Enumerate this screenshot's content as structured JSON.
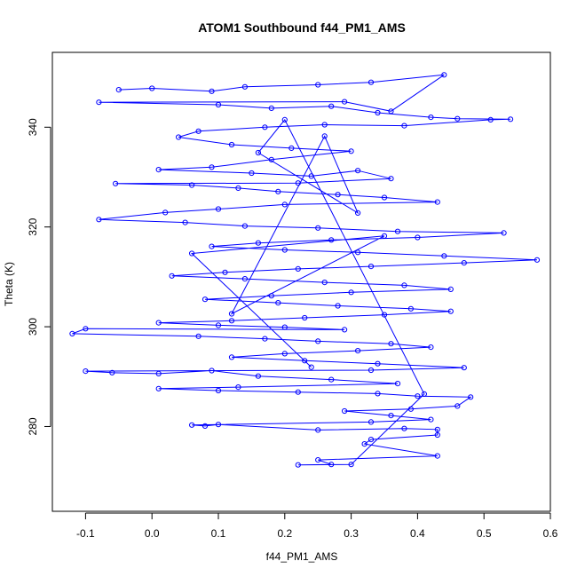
{
  "chart_data": {
    "type": "scatter",
    "title": "ATOM1 Southbound f44_PM1_AMS",
    "xlabel": "f44_PM1_AMS",
    "ylabel": "Theta (K)",
    "xlim": [
      -0.15,
      0.6
    ],
    "ylim": [
      263,
      355
    ],
    "xticks": [
      -0.1,
      0.0,
      0.1,
      0.2,
      0.3,
      0.4,
      0.5,
      0.6
    ],
    "xtick_labels": [
      "-0.1",
      "0.0",
      "0.1",
      "0.2",
      "0.3",
      "0.4",
      "0.5",
      "0.6"
    ],
    "yticks": [
      280,
      300,
      320,
      340
    ],
    "ytick_labels": [
      "280",
      "300",
      "320",
      "340"
    ],
    "grid": false,
    "marker": "open-circle",
    "connected": true,
    "color": "#0000ff",
    "series": [
      {
        "points": [
          [
            -0.05,
            347.5
          ],
          [
            0.0,
            347.8
          ],
          [
            0.09,
            347.2
          ],
          [
            0.14,
            348.1
          ],
          [
            0.25,
            348.5
          ],
          [
            0.33,
            349.0
          ],
          [
            0.44,
            350.5
          ],
          [
            0.36,
            343.2
          ],
          [
            0.29,
            345.1
          ],
          [
            -0.08,
            345.0
          ],
          [
            0.1,
            344.5
          ],
          [
            0.18,
            343.8
          ],
          [
            0.27,
            344.2
          ],
          [
            0.34,
            342.9
          ],
          [
            0.42,
            342.0
          ],
          [
            0.46,
            341.7
          ],
          [
            0.54,
            341.6
          ],
          [
            0.51,
            341.5
          ],
          [
            0.38,
            340.3
          ],
          [
            0.26,
            340.5
          ],
          [
            0.17,
            340.0
          ],
          [
            0.07,
            339.2
          ],
          [
            0.04,
            338.0
          ],
          [
            0.12,
            336.5
          ],
          [
            0.21,
            335.8
          ],
          [
            0.3,
            335.2
          ],
          [
            0.18,
            333.5
          ],
          [
            0.09,
            332.0
          ],
          [
            0.01,
            331.5
          ],
          [
            0.15,
            330.8
          ],
          [
            0.24,
            330.2
          ],
          [
            0.31,
            331.3
          ],
          [
            0.36,
            329.7
          ],
          [
            0.22,
            328.8
          ],
          [
            -0.055,
            328.7
          ],
          [
            0.06,
            328.4
          ],
          [
            0.13,
            327.8
          ],
          [
            0.19,
            327.1
          ],
          [
            0.28,
            326.5
          ],
          [
            0.35,
            325.9
          ],
          [
            0.43,
            325.0
          ],
          [
            0.2,
            324.5
          ],
          [
            0.1,
            323.6
          ],
          [
            0.02,
            322.9
          ],
          [
            -0.08,
            321.5
          ],
          [
            0.05,
            320.9
          ],
          [
            0.14,
            320.2
          ],
          [
            0.25,
            319.8
          ],
          [
            0.37,
            319.1
          ],
          [
            0.53,
            318.8
          ],
          [
            0.4,
            317.9
          ],
          [
            0.27,
            317.4
          ],
          [
            0.16,
            316.8
          ],
          [
            0.09,
            316.1
          ],
          [
            0.2,
            315.4
          ],
          [
            0.31,
            314.9
          ],
          [
            0.44,
            314.2
          ],
          [
            0.58,
            313.4
          ],
          [
            0.47,
            312.8
          ],
          [
            0.33,
            312.1
          ],
          [
            0.22,
            311.6
          ],
          [
            0.11,
            310.9
          ],
          [
            0.03,
            310.2
          ],
          [
            0.14,
            309.6
          ],
          [
            0.26,
            308.9
          ],
          [
            0.38,
            308.3
          ],
          [
            0.45,
            307.5
          ],
          [
            0.3,
            306.9
          ],
          [
            0.18,
            306.2
          ],
          [
            0.08,
            305.5
          ],
          [
            0.19,
            304.8
          ],
          [
            0.28,
            304.2
          ],
          [
            0.39,
            303.6
          ],
          [
            0.45,
            303.1
          ],
          [
            0.35,
            302.4
          ],
          [
            0.23,
            301.8
          ],
          [
            0.12,
            301.2
          ],
          [
            0.01,
            300.8
          ],
          [
            0.1,
            300.3
          ],
          [
            0.2,
            299.9
          ],
          [
            0.29,
            299.4
          ],
          [
            -0.1,
            299.6
          ],
          [
            -0.12,
            298.6
          ],
          [
            0.07,
            298.1
          ],
          [
            0.17,
            297.6
          ],
          [
            0.25,
            297.1
          ],
          [
            0.36,
            296.6
          ],
          [
            0.42,
            295.9
          ],
          [
            0.31,
            295.2
          ],
          [
            0.2,
            294.6
          ],
          [
            0.12,
            293.9
          ],
          [
            0.23,
            293.2
          ],
          [
            0.34,
            292.6
          ],
          [
            0.47,
            291.8
          ],
          [
            0.33,
            291.3
          ],
          [
            -0.1,
            291.1
          ],
          [
            -0.06,
            290.8
          ],
          [
            0.01,
            290.6
          ],
          [
            0.09,
            291.2
          ],
          [
            0.16,
            290.1
          ],
          [
            0.27,
            289.4
          ],
          [
            0.37,
            288.6
          ],
          [
            0.13,
            287.9
          ],
          [
            0.01,
            287.6
          ],
          [
            0.1,
            287.2
          ],
          [
            0.22,
            286.9
          ],
          [
            0.34,
            286.6
          ],
          [
            0.4,
            286.1
          ],
          [
            0.48,
            285.9
          ],
          [
            0.46,
            284.1
          ],
          [
            0.39,
            283.5
          ],
          [
            0.29,
            283.1
          ],
          [
            0.36,
            282.2
          ],
          [
            0.42,
            281.4
          ],
          [
            0.33,
            280.9
          ],
          [
            0.06,
            280.3
          ],
          [
            0.08,
            280.1
          ],
          [
            0.1,
            280.4
          ],
          [
            0.25,
            279.3
          ],
          [
            0.38,
            279.6
          ],
          [
            0.43,
            279.4
          ],
          [
            0.43,
            278.3
          ],
          [
            0.33,
            277.4
          ],
          [
            0.32,
            276.5
          ],
          [
            0.43,
            274.1
          ],
          [
            0.25,
            273.3
          ],
          [
            0.27,
            272.4
          ],
          [
            0.22,
            272.3
          ],
          [
            0.3,
            272.4
          ],
          [
            0.41,
            286.5
          ],
          [
            0.2,
            341.5
          ],
          [
            0.16,
            334.9
          ],
          [
            0.31,
            322.8
          ],
          [
            0.26,
            338.2
          ],
          [
            0.12,
            302.6
          ],
          [
            0.35,
            318.2
          ],
          [
            0.06,
            314.7
          ],
          [
            0.24,
            291.9
          ]
        ]
      }
    ]
  }
}
